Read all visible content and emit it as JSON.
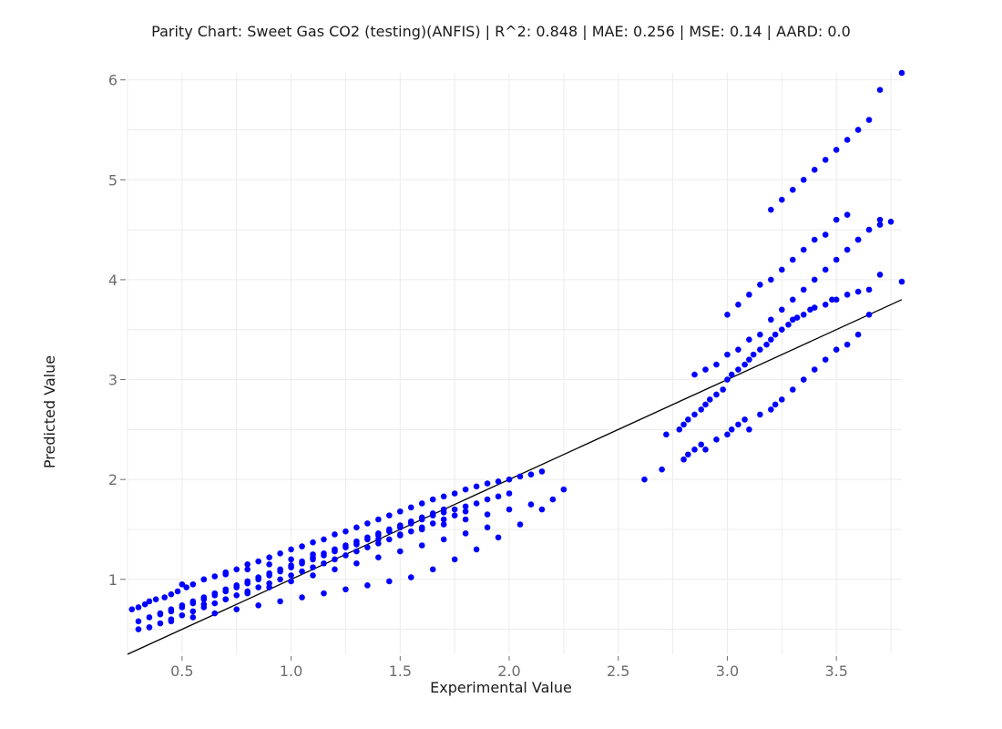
{
  "chart_data": {
    "type": "scatter",
    "title": "Parity Chart: Sweet Gas CO2 (testing)(ANFIS) | R^2: 0.848 | MAE: 0.256 | MSE: 0.14 | AARD: 0.0",
    "xlabel": "Experimental Value",
    "ylabel": "Predicted Value",
    "xlim": [
      0.25,
      3.8
    ],
    "ylim": [
      0.25,
      6.07
    ],
    "xticks": [
      0.5,
      1.0,
      1.5,
      2.0,
      2.5,
      3.0,
      3.5
    ],
    "xtick_labels": [
      "0.5",
      "1.0",
      "1.5",
      "2.0",
      "2.5",
      "3.0",
      "3.5"
    ],
    "yticks": [
      1,
      2,
      3,
      4,
      5,
      6
    ],
    "ytick_labels": [
      "1",
      "2",
      "3",
      "4",
      "5",
      "6"
    ],
    "grid": true,
    "parity_line": {
      "x": [
        0.25,
        3.8
      ],
      "y": [
        0.25,
        3.8
      ],
      "color": "#000000"
    },
    "marker_color": "#0000ff",
    "series": [
      {
        "x": [
          0.27,
          0.3,
          0.33,
          0.35,
          0.38,
          0.42,
          0.45,
          0.48,
          0.52,
          0.55,
          0.6,
          0.65,
          0.7,
          0.75,
          0.8,
          0.85,
          0.9,
          0.95,
          1.0,
          1.05,
          1.1,
          1.15,
          1.2,
          1.25,
          1.3,
          1.35,
          1.4,
          1.45,
          1.5,
          1.55,
          1.6,
          1.65,
          1.7,
          1.75,
          1.8,
          1.85,
          1.9,
          1.95,
          2.0,
          2.05,
          2.1,
          2.15,
          0.3,
          0.35,
          0.4,
          0.45,
          0.5,
          0.55,
          0.6,
          0.65,
          0.7,
          0.75,
          0.8,
          0.85,
          0.9,
          0.95,
          1.0,
          1.05,
          1.1,
          1.15,
          1.2,
          1.25,
          1.3,
          1.35,
          1.4,
          1.45,
          1.5,
          1.55,
          1.6,
          1.65,
          1.7,
          1.75,
          1.8,
          1.85,
          1.9,
          1.95,
          2.0,
          0.35,
          0.4,
          0.45,
          0.5,
          0.55,
          0.6,
          0.65,
          0.7,
          0.75,
          0.8,
          0.85,
          0.9,
          0.95,
          1.0,
          1.05,
          1.1,
          1.15,
          1.2,
          1.25,
          1.3,
          1.35,
          1.4,
          1.45,
          1.5,
          1.55,
          1.6,
          1.65,
          1.7,
          1.75,
          1.8,
          0.4,
          0.45,
          0.5,
          0.55,
          0.6,
          0.65,
          0.7,
          0.75,
          0.8,
          0.85,
          0.9,
          0.95,
          1.0,
          1.05,
          1.1,
          1.15,
          1.2,
          1.25,
          1.3,
          1.35,
          1.4,
          1.45,
          1.5,
          1.55,
          1.6,
          1.65,
          1.7,
          0.3,
          0.35,
          0.45,
          0.55,
          0.65,
          0.75,
          0.85,
          0.95,
          1.05,
          1.15,
          1.25,
          1.35,
          1.45,
          1.55,
          1.65,
          1.75,
          1.85,
          1.95,
          2.05,
          2.15,
          2.25,
          0.5,
          0.6,
          0.7,
          0.8,
          0.9,
          1.0,
          1.1,
          1.2,
          1.3,
          1.4,
          1.5,
          1.6,
          1.7,
          1.8,
          1.9,
          2.0,
          2.1,
          2.2,
          0.6,
          0.7,
          0.8,
          0.9,
          1.0,
          1.1,
          1.2,
          1.3,
          1.4,
          1.5,
          1.6,
          1.7,
          1.8,
          1.9,
          2.62,
          2.7,
          2.72,
          2.78,
          2.8,
          2.82,
          2.85,
          2.88,
          2.9,
          2.92,
          2.95,
          2.98,
          3.0,
          3.02,
          3.05,
          3.08,
          3.1,
          3.12,
          3.15,
          3.18,
          3.2,
          3.22,
          3.25,
          3.28,
          3.3,
          3.32,
          3.35,
          3.38,
          3.4,
          3.45,
          3.48,
          3.5,
          3.55,
          3.6,
          3.65,
          3.7,
          2.8,
          2.82,
          2.85,
          2.88,
          2.9,
          2.95,
          3.0,
          3.02,
          3.05,
          3.08,
          3.1,
          3.15,
          3.2,
          3.22,
          3.25,
          3.3,
          3.35,
          3.4,
          3.45,
          3.5,
          3.55,
          3.6,
          2.85,
          2.9,
          2.95,
          3.0,
          3.05,
          3.1,
          3.15,
          3.2,
          3.25,
          3.3,
          3.35,
          3.4,
          3.45,
          3.5,
          3.55,
          3.6,
          3.65,
          3.7,
          3.8,
          3.0,
          3.05,
          3.1,
          3.15,
          3.2,
          3.25,
          3.3,
          3.35,
          3.4,
          3.45,
          3.5,
          3.55,
          3.6,
          3.65,
          3.7,
          3.75,
          3.2,
          3.25,
          3.3,
          3.35,
          3.4,
          3.45,
          3.5,
          3.55,
          3.6,
          3.65,
          3.7,
          3.8
        ],
        "y": [
          0.7,
          0.72,
          0.75,
          0.78,
          0.8,
          0.82,
          0.85,
          0.88,
          0.92,
          0.95,
          1.0,
          1.03,
          1.07,
          1.1,
          1.15,
          1.18,
          1.22,
          1.26,
          1.3,
          1.33,
          1.37,
          1.4,
          1.45,
          1.48,
          1.52,
          1.56,
          1.6,
          1.64,
          1.68,
          1.72,
          1.76,
          1.8,
          1.83,
          1.86,
          1.9,
          1.93,
          1.96,
          1.98,
          2.0,
          2.03,
          2.05,
          2.08,
          0.58,
          0.62,
          0.65,
          0.68,
          0.72,
          0.76,
          0.8,
          0.84,
          0.88,
          0.92,
          0.96,
          1.0,
          1.04,
          1.08,
          1.12,
          1.16,
          1.2,
          1.24,
          1.28,
          1.32,
          1.36,
          1.4,
          1.44,
          1.48,
          1.52,
          1.56,
          1.6,
          1.64,
          1.67,
          1.7,
          1.73,
          1.76,
          1.8,
          1.83,
          1.86,
          0.52,
          0.56,
          0.6,
          0.64,
          0.68,
          0.72,
          0.76,
          0.8,
          0.84,
          0.88,
          0.92,
          0.96,
          1.0,
          1.04,
          1.08,
          1.12,
          1.16,
          1.2,
          1.24,
          1.28,
          1.32,
          1.36,
          1.4,
          1.44,
          1.48,
          1.52,
          1.56,
          1.6,
          1.64,
          1.68,
          0.66,
          0.7,
          0.74,
          0.78,
          0.82,
          0.86,
          0.9,
          0.94,
          0.98,
          1.02,
          1.06,
          1.1,
          1.14,
          1.18,
          1.22,
          1.26,
          1.3,
          1.34,
          1.38,
          1.42,
          1.46,
          1.5,
          1.54,
          1.58,
          1.62,
          1.66,
          1.7,
          0.5,
          0.52,
          0.58,
          0.62,
          0.66,
          0.7,
          0.74,
          0.78,
          0.82,
          0.86,
          0.9,
          0.94,
          0.98,
          1.02,
          1.1,
          1.2,
          1.3,
          1.42,
          1.55,
          1.7,
          1.9,
          0.95,
          1.0,
          1.05,
          1.1,
          1.15,
          1.2,
          1.25,
          1.3,
          1.35,
          1.4,
          1.45,
          1.5,
          1.55,
          1.6,
          1.65,
          1.7,
          1.75,
          1.8,
          0.75,
          0.8,
          0.86,
          0.92,
          0.98,
          1.04,
          1.1,
          1.16,
          1.22,
          1.28,
          1.34,
          1.4,
          1.46,
          1.52,
          2.0,
          2.1,
          2.45,
          2.5,
          2.55,
          2.6,
          2.65,
          2.7,
          2.75,
          2.8,
          2.85,
          2.9,
          3.0,
          3.05,
          3.1,
          3.15,
          3.2,
          3.25,
          3.3,
          3.35,
          3.4,
          3.45,
          3.5,
          3.55,
          3.6,
          3.62,
          3.65,
          3.7,
          3.72,
          3.75,
          3.8,
          3.8,
          3.85,
          3.88,
          3.9,
          4.05,
          2.2,
          2.25,
          2.3,
          2.35,
          2.3,
          2.4,
          2.45,
          2.5,
          2.55,
          2.6,
          2.5,
          2.65,
          2.7,
          2.75,
          2.8,
          2.9,
          3.0,
          3.1,
          3.2,
          3.3,
          3.35,
          3.45,
          3.05,
          3.1,
          3.15,
          3.25,
          3.3,
          3.4,
          3.45,
          3.6,
          3.7,
          3.8,
          3.9,
          4.0,
          4.1,
          4.2,
          4.3,
          4.4,
          4.5,
          4.55,
          3.98,
          3.65,
          3.75,
          3.85,
          3.95,
          4.0,
          4.1,
          4.2,
          4.3,
          4.4,
          4.45,
          4.6,
          4.65,
          4.4,
          3.65,
          4.6,
          4.58,
          4.7,
          4.8,
          4.9,
          5.0,
          5.1,
          5.2,
          5.3,
          5.4,
          5.5,
          5.6,
          5.9,
          6.07
        ]
      }
    ]
  }
}
